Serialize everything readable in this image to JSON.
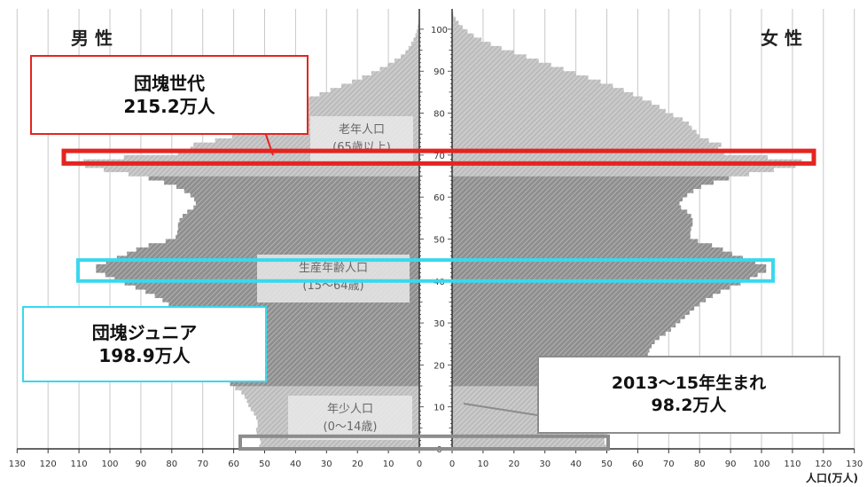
{
  "chart_data": {
    "type": "population-pyramid",
    "left_label": "男 性",
    "right_label": "女 性",
    "age_ticks": [
      "0",
      "10",
      "20",
      "30",
      "40",
      "50",
      "60",
      "70",
      "80",
      "90",
      "100"
    ],
    "x_ticks_left": [
      "130",
      "120",
      "110",
      "100",
      "90",
      "80",
      "70",
      "60",
      "50",
      "40",
      "30",
      "20",
      "10",
      "0"
    ],
    "x_ticks_right": [
      "0",
      "10",
      "20",
      "30",
      "40",
      "50",
      "60",
      "70",
      "80",
      "90",
      "100",
      "110",
      "120",
      "130"
    ],
    "x_unit_label": "人口(万人)",
    "xlim": [
      0,
      130
    ],
    "age_range": [
      0,
      104
    ],
    "group_labels": {
      "elderly": [
        "老年人口",
        "(65歳以上)"
      ],
      "working": [
        "生産年齢人口",
        "(15〜64歳)"
      ],
      "young": [
        "年少人口",
        "(0〜14歳)"
      ]
    },
    "male_anchors": [
      [
        0,
        52
      ],
      [
        2,
        51
      ],
      [
        4,
        53
      ],
      [
        6,
        52
      ],
      [
        8,
        53
      ],
      [
        10,
        55
      ],
      [
        12,
        56
      ],
      [
        14,
        58
      ],
      [
        15,
        61
      ],
      [
        18,
        62
      ],
      [
        20,
        63
      ],
      [
        22,
        65
      ],
      [
        24,
        66
      ],
      [
        26,
        68
      ],
      [
        28,
        71
      ],
      [
        30,
        74
      ],
      [
        32,
        77
      ],
      [
        34,
        80
      ],
      [
        36,
        84
      ],
      [
        38,
        90
      ],
      [
        40,
        97
      ],
      [
        42,
        103
      ],
      [
        43,
        106
      ],
      [
        44,
        103
      ],
      [
        46,
        96
      ],
      [
        48,
        90
      ],
      [
        49,
        85
      ],
      [
        50,
        79
      ],
      [
        52,
        78
      ],
      [
        54,
        78
      ],
      [
        56,
        76
      ],
      [
        57,
        74
      ],
      [
        58,
        72
      ],
      [
        60,
        73
      ],
      [
        62,
        77
      ],
      [
        63,
        80
      ],
      [
        64,
        85
      ],
      [
        65,
        90
      ],
      [
        66,
        98
      ],
      [
        67,
        106
      ],
      [
        68,
        110
      ],
      [
        69,
        107
      ],
      [
        70,
        84
      ],
      [
        71,
        72
      ],
      [
        72,
        76
      ],
      [
        73,
        70
      ],
      [
        74,
        62
      ],
      [
        75,
        59
      ],
      [
        76,
        58
      ],
      [
        78,
        54
      ],
      [
        80,
        48
      ],
      [
        82,
        41
      ],
      [
        84,
        34
      ],
      [
        86,
        27
      ],
      [
        88,
        20
      ],
      [
        90,
        14
      ],
      [
        92,
        9
      ],
      [
        94,
        5
      ],
      [
        96,
        3
      ],
      [
        98,
        1.5
      ],
      [
        100,
        0.6
      ],
      [
        102,
        0.2
      ],
      [
        104,
        0
      ]
    ],
    "female_anchors": [
      [
        0,
        50
      ],
      [
        2,
        49
      ],
      [
        4,
        50
      ],
      [
        6,
        50
      ],
      [
        8,
        51
      ],
      [
        10,
        53
      ],
      [
        12,
        54
      ],
      [
        14,
        56
      ],
      [
        15,
        59
      ],
      [
        18,
        60
      ],
      [
        20,
        61
      ],
      [
        22,
        63
      ],
      [
        24,
        64
      ],
      [
        26,
        66
      ],
      [
        28,
        70
      ],
      [
        30,
        73
      ],
      [
        32,
        76
      ],
      [
        34,
        79
      ],
      [
        36,
        83
      ],
      [
        38,
        88
      ],
      [
        40,
        95
      ],
      [
        42,
        100
      ],
      [
        43,
        103
      ],
      [
        44,
        100
      ],
      [
        46,
        92
      ],
      [
        48,
        86
      ],
      [
        49,
        82
      ],
      [
        50,
        77
      ],
      [
        52,
        77
      ],
      [
        54,
        78
      ],
      [
        56,
        77
      ],
      [
        57,
        75
      ],
      [
        58,
        73
      ],
      [
        60,
        75
      ],
      [
        62,
        79
      ],
      [
        63,
        82
      ],
      [
        64,
        87
      ],
      [
        65,
        92
      ],
      [
        66,
        100
      ],
      [
        67,
        108
      ],
      [
        68,
        114
      ],
      [
        69,
        112
      ],
      [
        70,
        92
      ],
      [
        71,
        84
      ],
      [
        72,
        88
      ],
      [
        73,
        86
      ],
      [
        74,
        80
      ],
      [
        75,
        80
      ],
      [
        76,
        78
      ],
      [
        78,
        76
      ],
      [
        80,
        70
      ],
      [
        82,
        66
      ],
      [
        84,
        60
      ],
      [
        86,
        54
      ],
      [
        88,
        46
      ],
      [
        90,
        38
      ],
      [
        92,
        30
      ],
      [
        94,
        22
      ],
      [
        96,
        14
      ],
      [
        98,
        8
      ],
      [
        100,
        4
      ],
      [
        102,
        1.5
      ],
      [
        104,
        0
      ]
    ],
    "highlights": {
      "dankai": {
        "ages": [
          68,
          71
        ],
        "color": "#e52420"
      },
      "dankai_junior": {
        "ages": [
          40,
          45
        ],
        "color": "#39d8ee"
      },
      "births": {
        "ages": [
          0,
          3
        ],
        "color": "#8c8c8c"
      }
    },
    "callouts": {
      "dankai": {
        "title": "団塊世代",
        "value": "215.2万人"
      },
      "dankai_junior": {
        "title": "団塊ジュニア",
        "value": "198.9万人"
      },
      "births": {
        "title": "2013〜15年生まれ",
        "value": "98.2万人"
      }
    }
  }
}
